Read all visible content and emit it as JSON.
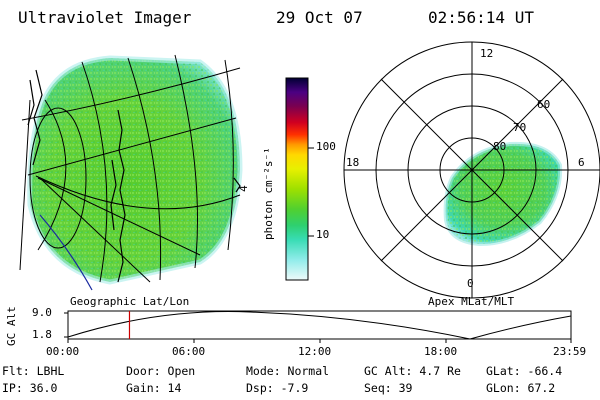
{
  "header": {
    "title": "Ultraviolet Imager",
    "date": "29 Oct 07",
    "time": "02:56:14 UT"
  },
  "colorbar": {
    "unit_label": "photon cm⁻²s⁻¹",
    "ticks": [
      "100",
      "10"
    ],
    "colors": [
      "#000033",
      "#1a0050",
      "#4b0082",
      "#6a0050",
      "#a00020",
      "#e00020",
      "#ff5000",
      "#ff9a00",
      "#ffd000",
      "#eef000",
      "#b8e800",
      "#7ad800",
      "#44d030",
      "#2ed060",
      "#33d8a0",
      "#44e0c8",
      "#7ee8e0",
      "#bff2ee",
      "#e8f8f8"
    ]
  },
  "geo_panel": {
    "label": "Geographic Lat/Lon",
    "edge_mark": "4"
  },
  "polar_panel": {
    "label": "Apex MLat/MLT",
    "mlt_labels": [
      "12",
      "18",
      "6",
      "0"
    ],
    "lat_labels": [
      "60",
      "70",
      "80"
    ]
  },
  "timeline": {
    "ylabel": "GC Alt",
    "yticks": [
      "9.0",
      "1.8"
    ],
    "xticks": [
      "00:00",
      "06:00",
      "12:00",
      "18:00",
      "23:59"
    ],
    "marker_time": "02:56"
  },
  "status": {
    "filter": "Flt: LBHL",
    "ip": "IP: 36.0",
    "door": "Door: Open",
    "gain": "Gain: 14",
    "mode": "Mode: Normal",
    "dsp": "Dsp:   -7.9",
    "gc_alt": "GC Alt: 4.7 Re",
    "seq": "Seq: 39",
    "glat": "GLat: -66.4",
    "glon": "GLon: 67.2"
  },
  "colors": {
    "accent_marker": "#cc0000",
    "aurora_green": "#60d040",
    "aurora_cyan": "#40d8c0"
  }
}
